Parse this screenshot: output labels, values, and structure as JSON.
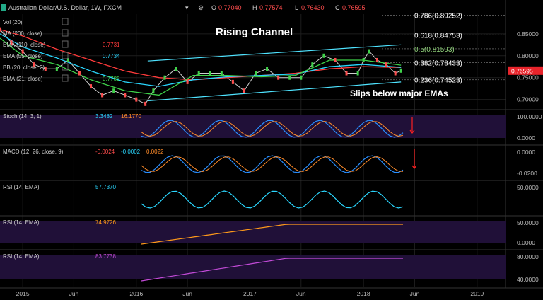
{
  "header": {
    "symbol_title": "Australian Dollar/U.S. Dollar, 1W, FXCM",
    "o_label": "O",
    "o_value": "0.77040",
    "h_label": "H",
    "h_value": "0.77574",
    "l_label": "L",
    "l_value": "0.76430",
    "c_label": "C",
    "c_value": "0.76595"
  },
  "legend": [
    {
      "label": "Vol (20)",
      "value": ""
    },
    {
      "label": "MA (200, close)",
      "value": ""
    },
    {
      "label": "EMA (110, close)",
      "value": "0.7731",
      "color": "#ff3b3b"
    },
    {
      "label": "EMA (55, close)",
      "value": "0.7734",
      "color": "#2ad7ff"
    },
    {
      "label": "BB (20, close, 2)",
      "value": ""
    },
    {
      "label": "EMA (21, close)",
      "value": "0.7785",
      "color": "#3fd24a"
    }
  ],
  "annotations": {
    "title": "Rising Channel",
    "note": "Slips below major EMAs"
  },
  "fib_levels": [
    {
      "label": "0.786(0.89252)",
      "value": 0.89252,
      "color": "#ffffff"
    },
    {
      "label": "0.618(0.84753)",
      "value": 0.84753,
      "color": "#ffffff"
    },
    {
      "label": "0.5(0.81593)",
      "value": 0.81593,
      "color": "#8fd07a"
    },
    {
      "label": "0.382(0.78433)",
      "value": 0.78433,
      "color": "#ffffff"
    },
    {
      "label": "0.236(0.74523)",
      "value": 0.74523,
      "color": "#ffffff"
    }
  ],
  "price_axis": {
    "ticks": [
      "0.85000",
      "0.80000",
      "0.75000",
      "0.70000"
    ],
    "tick_values": [
      0.85,
      0.8,
      0.75,
      0.7
    ],
    "current_label": "0.76595",
    "current_value": 0.76595,
    "ylim": [
      0.68,
      0.895
    ]
  },
  "time_axis": {
    "labels": [
      "2015",
      "Jun",
      "2016",
      "Jun",
      "2017",
      "Jun",
      "2018",
      "Jun",
      "2019"
    ],
    "label_dates": [
      2015.0,
      2015.45,
      2016.0,
      2016.45,
      2017.0,
      2017.45,
      2018.0,
      2018.45,
      2019.0
    ],
    "xlim": [
      2014.8,
      2019.25
    ]
  },
  "panels": {
    "stoch": {
      "label": "Stoch (14, 3, 1)",
      "v1": "3.3482",
      "v2": "16.1770",
      "ticks": [
        "100.0000",
        "0.0000"
      ]
    },
    "macd": {
      "label": "MACD (12, 26, close, 9)",
      "v1": "-0.0024",
      "v2": "-0.0002",
      "v3": "0.0022",
      "ticks": [
        "0.0000",
        "-0.0200"
      ]
    },
    "rsi1": {
      "label": "RSI (14, EMA)",
      "v1": "57.7370",
      "ticks": [
        "50.0000"
      ]
    },
    "rsi2": {
      "label": "RSI (14, EMA)",
      "v1": "74.9726",
      "ticks": [
        "50.0000",
        "0.0000"
      ]
    },
    "rsi3": {
      "label": "RSI (14, EMA)",
      "v1": "83.7738",
      "ticks": [
        "80.0000",
        "40.0000"
      ]
    }
  },
  "chart_data": {
    "type": "line",
    "series": [
      {
        "name": "AUD/USD close",
        "x": [
          2014.8,
          2014.9,
          2015.0,
          2015.1,
          2015.2,
          2015.3,
          2015.4,
          2015.5,
          2015.6,
          2015.7,
          2015.8,
          2015.9,
          2016.0,
          2016.08,
          2016.15,
          2016.25,
          2016.35,
          2016.45,
          2016.55,
          2016.65,
          2016.75,
          2016.85,
          2016.95,
          2017.05,
          2017.15,
          2017.25,
          2017.35,
          2017.45,
          2017.55,
          2017.65,
          2017.75,
          2017.85,
          2017.95,
          2018.0,
          2018.05,
          2018.12,
          2018.2,
          2018.28,
          2018.33
        ],
        "values": [
          0.86,
          0.83,
          0.81,
          0.78,
          0.77,
          0.77,
          0.79,
          0.76,
          0.73,
          0.71,
          0.72,
          0.71,
          0.7,
          0.69,
          0.72,
          0.75,
          0.77,
          0.74,
          0.76,
          0.76,
          0.76,
          0.74,
          0.72,
          0.76,
          0.77,
          0.75,
          0.75,
          0.75,
          0.78,
          0.8,
          0.79,
          0.76,
          0.76,
          0.79,
          0.81,
          0.79,
          0.78,
          0.76,
          0.766
        ]
      },
      {
        "name": "EMA (110, close)",
        "x": [
          2014.8,
          2015.0,
          2015.3,
          2015.6,
          2015.9,
          2016.2,
          2016.5,
          2016.8,
          2017.1,
          2017.4,
          2017.7,
          2018.0,
          2018.33
        ],
        "values": [
          0.86,
          0.845,
          0.815,
          0.79,
          0.765,
          0.75,
          0.745,
          0.75,
          0.755,
          0.76,
          0.77,
          0.775,
          0.7731
        ]
      },
      {
        "name": "EMA (55, close)",
        "x": [
          2014.8,
          2015.0,
          2015.3,
          2015.6,
          2015.9,
          2016.2,
          2016.5,
          2016.8,
          2017.1,
          2017.4,
          2017.7,
          2018.0,
          2018.33
        ],
        "values": [
          0.85,
          0.82,
          0.795,
          0.765,
          0.74,
          0.73,
          0.745,
          0.752,
          0.755,
          0.758,
          0.775,
          0.78,
          0.7734
        ]
      },
      {
        "name": "EMA (21, close)",
        "x": [
          2014.8,
          2015.0,
          2015.3,
          2015.6,
          2015.9,
          2016.2,
          2016.5,
          2016.8,
          2017.1,
          2017.4,
          2017.7,
          2018.0,
          2018.33
        ],
        "values": [
          0.84,
          0.8,
          0.78,
          0.745,
          0.72,
          0.71,
          0.755,
          0.755,
          0.752,
          0.755,
          0.79,
          0.79,
          0.7785
        ]
      }
    ],
    "channel": {
      "upper": {
        "x": [
          2016.1,
          2018.33
        ],
        "values": [
          0.788,
          0.825
        ]
      },
      "lower": {
        "x": [
          2016.1,
          2018.33
        ],
        "values": [
          0.697,
          0.74
        ]
      }
    },
    "ylim": [
      0.68,
      0.895
    ],
    "xlim": [
      2014.8,
      2019.25
    ]
  }
}
